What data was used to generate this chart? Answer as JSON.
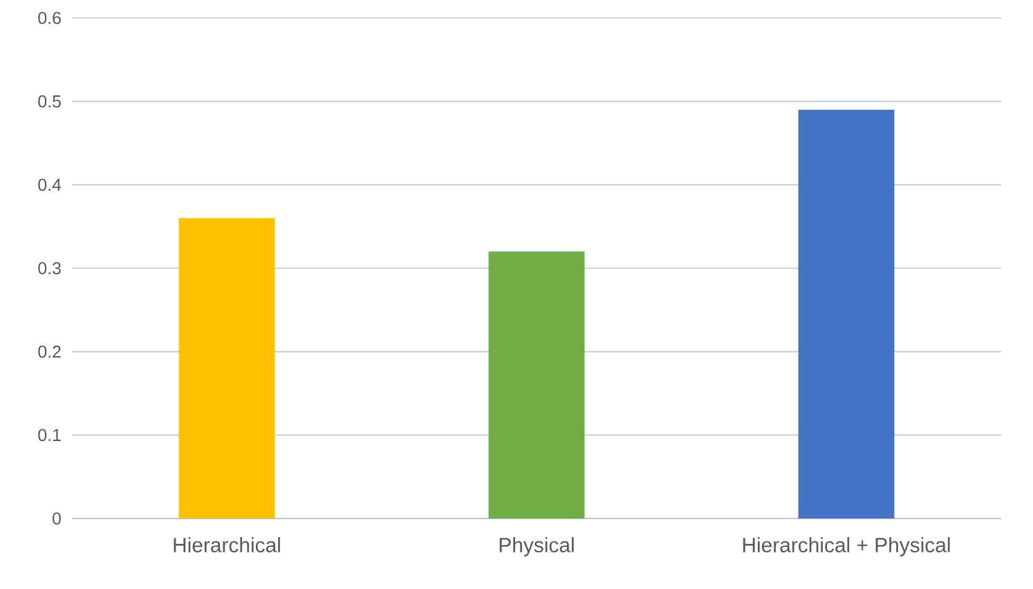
{
  "chart_data": {
    "type": "bar",
    "categories": [
      "Hierarchical",
      "Physical",
      "Hierarchical + Physical"
    ],
    "values": [
      0.36,
      0.32,
      0.49
    ],
    "colors": [
      "#ffc000",
      "#70ad47",
      "#4472c4"
    ],
    "ylim": [
      0,
      0.6
    ],
    "yticks": [
      0,
      0.1,
      0.2,
      0.3,
      0.4,
      0.5,
      0.6
    ],
    "grid": "y"
  }
}
